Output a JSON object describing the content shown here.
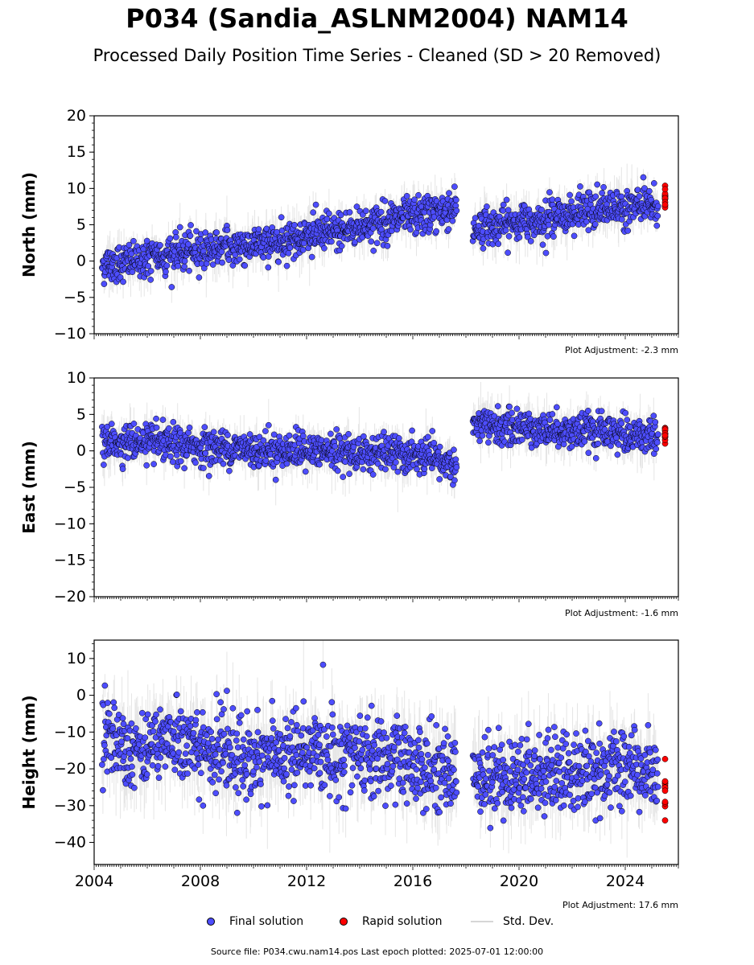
{
  "title": "P034 (Sandia_ASLNM2004) NAM14",
  "subtitle": "Processed Daily Position Time Series - Cleaned (SD > 20 Removed)",
  "legend": {
    "final": "Final solution",
    "rapid": "Rapid solution",
    "std": "Std. Dev."
  },
  "source": "Source file: P034.cwu.nam14.pos  Last epoch plotted: 2025-07-01 12:00:00",
  "colors": {
    "final": "#4d4dff",
    "rapid": "#ff0000",
    "std": "#d0d0d0",
    "marker_edge": "#000000"
  },
  "chart_data": [
    {
      "type": "scatter",
      "ylabel": "North (mm)",
      "xlim": [
        2004.0,
        2026.0
      ],
      "ylim": [
        -10,
        20
      ],
      "yticks": [
        -10,
        -5,
        0,
        5,
        10,
        15,
        20
      ],
      "adjustment": "Plot Adjustment: -2.3 mm",
      "series": [
        {
          "name": "Final solution",
          "x": [
            2004.3,
            2005.5,
            2007.0,
            2008.5,
            2010.0,
            2011.5,
            2013.0,
            2014.5,
            2016.0,
            2017.6,
            2018.3,
            2019.5,
            2021.0,
            2022.5,
            2024.0,
            2025.2
          ],
          "y": [
            -0.5,
            0.0,
            1.0,
            1.8,
            2.2,
            3.2,
            4.0,
            5.2,
            6.0,
            7.3,
            4.5,
            5.0,
            6.0,
            6.8,
            7.5,
            7.8
          ]
        },
        {
          "name": "Rapid solution",
          "x": [
            2025.5
          ],
          "y": [
            8.5
          ]
        }
      ]
    },
    {
      "type": "scatter",
      "ylabel": "East (mm)",
      "xlim": [
        2004.0,
        2026.0
      ],
      "ylim": [
        -20,
        10
      ],
      "yticks": [
        -20,
        -15,
        -10,
        -5,
        0,
        5,
        10
      ],
      "adjustment": "Plot Adjustment: -1.6 mm",
      "series": [
        {
          "name": "Final solution",
          "x": [
            2004.3,
            2005.5,
            2007.0,
            2008.5,
            2010.0,
            2011.5,
            2013.0,
            2014.5,
            2016.0,
            2017.6,
            2018.3,
            2019.5,
            2021.0,
            2022.5,
            2024.0,
            2025.2
          ],
          "y": [
            1.0,
            1.2,
            0.8,
            0.5,
            0.2,
            0.0,
            -0.2,
            -0.3,
            -0.6,
            -2.0,
            3.5,
            3.2,
            3.0,
            2.6,
            2.3,
            2.0
          ]
        },
        {
          "name": "Rapid solution",
          "x": [
            2025.5
          ],
          "y": [
            2.0
          ]
        }
      ]
    },
    {
      "type": "scatter",
      "ylabel": "Height (mm)",
      "xlim": [
        2004.0,
        2026.0
      ],
      "ylim": [
        -46,
        15
      ],
      "yticks": [
        -40,
        -30,
        -20,
        -10,
        0,
        10
      ],
      "xticks": [
        2004,
        2008,
        2012,
        2016,
        2020,
        2024
      ],
      "adjustment": "Plot Adjustment: 17.6 mm",
      "series": [
        {
          "name": "Final solution",
          "x": [
            2004.3,
            2005.5,
            2007.0,
            2008.5,
            2010.0,
            2011.5,
            2013.0,
            2014.5,
            2016.0,
            2017.6,
            2018.3,
            2019.5,
            2021.0,
            2022.5,
            2024.0,
            2025.2
          ],
          "y": [
            -10,
            -14,
            -12,
            -16,
            -17,
            -16,
            -15,
            -17,
            -19,
            -21,
            -22,
            -22,
            -21,
            -21,
            -20,
            -22
          ]
        },
        {
          "name": "Rapid solution",
          "x": [
            2025.5
          ],
          "y": [
            -25
          ]
        }
      ]
    }
  ]
}
